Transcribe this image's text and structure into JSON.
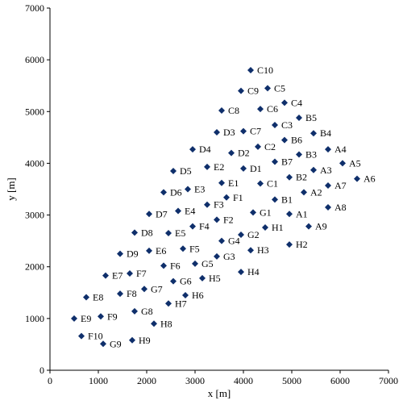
{
  "chart_data": {
    "type": "scatter",
    "title": "",
    "xlabel": "x [m]",
    "ylabel": "y [m]",
    "xlim": [
      0,
      7000
    ],
    "ylim": [
      0,
      7000
    ],
    "xticks": [
      0,
      1000,
      2000,
      3000,
      4000,
      5000,
      6000,
      7000
    ],
    "yticks": [
      0,
      1000,
      2000,
      3000,
      4000,
      5000,
      6000,
      7000
    ],
    "grid": false,
    "legend": "none",
    "marker": "diamond",
    "marker_color": "#0f2f6b",
    "points": [
      {
        "label": "C10",
        "x": 4150,
        "y": 5800
      },
      {
        "label": "C9",
        "x": 3950,
        "y": 5400
      },
      {
        "label": "C5",
        "x": 4500,
        "y": 5450
      },
      {
        "label": "C4",
        "x": 4850,
        "y": 5170
      },
      {
        "label": "C8",
        "x": 3550,
        "y": 5020
      },
      {
        "label": "C6",
        "x": 4350,
        "y": 5050
      },
      {
        "label": "B5",
        "x": 5150,
        "y": 4880
      },
      {
        "label": "C3",
        "x": 4650,
        "y": 4740
      },
      {
        "label": "D3",
        "x": 3450,
        "y": 4600
      },
      {
        "label": "C7",
        "x": 4000,
        "y": 4620
      },
      {
        "label": "B4",
        "x": 5450,
        "y": 4580
      },
      {
        "label": "B6",
        "x": 4850,
        "y": 4450
      },
      {
        "label": "C2",
        "x": 4300,
        "y": 4320
      },
      {
        "label": "D4",
        "x": 2950,
        "y": 4270
      },
      {
        "label": "A4",
        "x": 5750,
        "y": 4270
      },
      {
        "label": "D2",
        "x": 3750,
        "y": 4200
      },
      {
        "label": "B3",
        "x": 5150,
        "y": 4170
      },
      {
        "label": "B7",
        "x": 4650,
        "y": 4030
      },
      {
        "label": "A5",
        "x": 6050,
        "y": 4000
      },
      {
        "label": "E2",
        "x": 3250,
        "y": 3930
      },
      {
        "label": "D1",
        "x": 4000,
        "y": 3900
      },
      {
        "label": "D5",
        "x": 2550,
        "y": 3850
      },
      {
        "label": "A3",
        "x": 5450,
        "y": 3870
      },
      {
        "label": "B2",
        "x": 4950,
        "y": 3730
      },
      {
        "label": "A6",
        "x": 6350,
        "y": 3700
      },
      {
        "label": "E1",
        "x": 3550,
        "y": 3620
      },
      {
        "label": "C1",
        "x": 4350,
        "y": 3610
      },
      {
        "label": "A7",
        "x": 5750,
        "y": 3570
      },
      {
        "label": "E3",
        "x": 2850,
        "y": 3500
      },
      {
        "label": "D6",
        "x": 2350,
        "y": 3440
      },
      {
        "label": "A2",
        "x": 5250,
        "y": 3440
      },
      {
        "label": "F1",
        "x": 3650,
        "y": 3340
      },
      {
        "label": "B1",
        "x": 4650,
        "y": 3300
      },
      {
        "label": "F3",
        "x": 3250,
        "y": 3200
      },
      {
        "label": "A8",
        "x": 5750,
        "y": 3150
      },
      {
        "label": "E4",
        "x": 2650,
        "y": 3080
      },
      {
        "label": "G1",
        "x": 4200,
        "y": 3050
      },
      {
        "label": "D7",
        "x": 2050,
        "y": 3020
      },
      {
        "label": "A1",
        "x": 4950,
        "y": 3020
      },
      {
        "label": "F2",
        "x": 3450,
        "y": 2910
      },
      {
        "label": "F4",
        "x": 2950,
        "y": 2780
      },
      {
        "label": "H1",
        "x": 4450,
        "y": 2760
      },
      {
        "label": "A9",
        "x": 5350,
        "y": 2780
      },
      {
        "label": "D8",
        "x": 1750,
        "y": 2660
      },
      {
        "label": "E5",
        "x": 2450,
        "y": 2650
      },
      {
        "label": "G2",
        "x": 3950,
        "y": 2620
      },
      {
        "label": "G4",
        "x": 3550,
        "y": 2500
      },
      {
        "label": "H2",
        "x": 4950,
        "y": 2430
      },
      {
        "label": "F5",
        "x": 2750,
        "y": 2350
      },
      {
        "label": "E6",
        "x": 2050,
        "y": 2310
      },
      {
        "label": "H3",
        "x": 4150,
        "y": 2320
      },
      {
        "label": "D9",
        "x": 1450,
        "y": 2250
      },
      {
        "label": "G3",
        "x": 3450,
        "y": 2200
      },
      {
        "label": "G5",
        "x": 3000,
        "y": 2060
      },
      {
        "label": "F6",
        "x": 2350,
        "y": 2020
      },
      {
        "label": "H4",
        "x": 3950,
        "y": 1900
      },
      {
        "label": "F7",
        "x": 1650,
        "y": 1870
      },
      {
        "label": "E7",
        "x": 1150,
        "y": 1830
      },
      {
        "label": "H5",
        "x": 3150,
        "y": 1780
      },
      {
        "label": "G6",
        "x": 2550,
        "y": 1720
      },
      {
        "label": "G7",
        "x": 1950,
        "y": 1570
      },
      {
        "label": "F8",
        "x": 1450,
        "y": 1480
      },
      {
        "label": "H6",
        "x": 2800,
        "y": 1450
      },
      {
        "label": "E8",
        "x": 750,
        "y": 1410
      },
      {
        "label": "H7",
        "x": 2450,
        "y": 1290
      },
      {
        "label": "G8",
        "x": 1750,
        "y": 1140
      },
      {
        "label": "F9",
        "x": 1050,
        "y": 1040
      },
      {
        "label": "E9",
        "x": 500,
        "y": 1000
      },
      {
        "label": "H8",
        "x": 2150,
        "y": 900
      },
      {
        "label": "F10",
        "x": 650,
        "y": 660
      },
      {
        "label": "H9",
        "x": 1700,
        "y": 580
      },
      {
        "label": "G9",
        "x": 1100,
        "y": 510
      }
    ]
  }
}
